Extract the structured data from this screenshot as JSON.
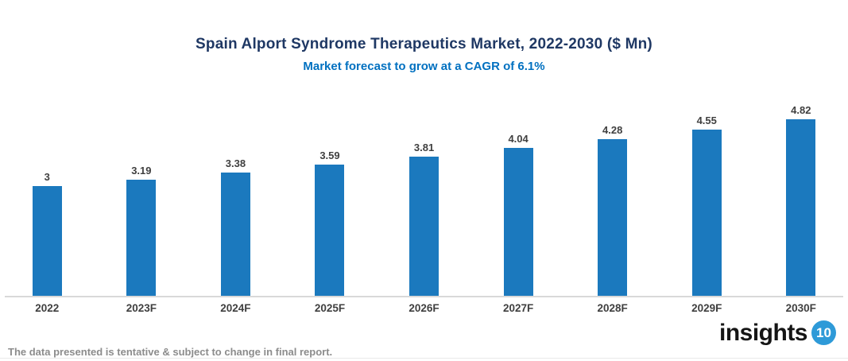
{
  "header": {
    "title": "Spain Alport Syndrome Therapeutics Market, 2022-2030 ($ Mn)",
    "subtitle": "Market forecast to grow at a CAGR of 6.1%"
  },
  "chart_data": {
    "type": "bar",
    "title": "Spain Alport Syndrome Therapeutics Market, 2022-2030 ($ Mn)",
    "subtitle": "Market forecast to grow at a CAGR of 6.1%",
    "categories": [
      "2022",
      "2023F",
      "2024F",
      "2025F",
      "2026F",
      "2027F",
      "2028F",
      "2029F",
      "2030F"
    ],
    "values": [
      3,
      3.19,
      3.38,
      3.59,
      3.81,
      4.04,
      4.28,
      4.55,
      4.82
    ],
    "value_labels": [
      "3",
      "3.19",
      "3.38",
      "3.59",
      "3.81",
      "4.04",
      "4.28",
      "4.55",
      "4.82"
    ],
    "xlabel": "",
    "ylabel": "",
    "ylim": [
      0,
      5.3
    ],
    "grid": false,
    "legend": false,
    "bar_color": "#1B79BE"
  },
  "footer": {
    "disclaimer": "The data presented is tentative & subject to change in final report.",
    "logo_text": "insights",
    "logo_badge": "10"
  },
  "colors": {
    "title": "#1F3864",
    "subtitle": "#0070C0",
    "bar": "#1B79BE",
    "data_label": "#404040",
    "axis_label": "#3F3F3F",
    "axis_line": "#D9D9D9",
    "footer_text": "#8C8C8C",
    "logo_badge_bg": "#2E9AD8"
  }
}
